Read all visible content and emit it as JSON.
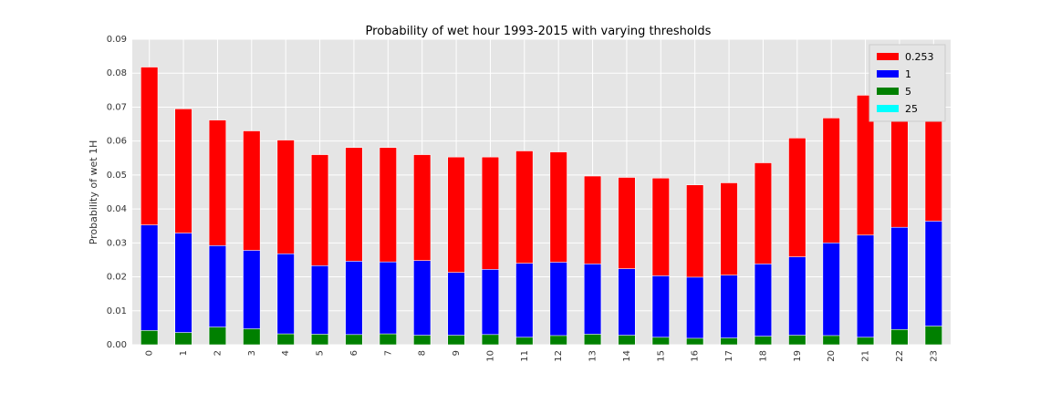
{
  "chart_data": {
    "type": "bar",
    "stacked": false,
    "overlay": true,
    "title": "Probability of wet hour 1993-2015 with varying thresholds",
    "xlabel": "",
    "ylabel": "Probability of wet 1H",
    "ylim": [
      0,
      0.09
    ],
    "yticks": [
      "0.00",
      "0.01",
      "0.02",
      "0.03",
      "0.04",
      "0.05",
      "0.06",
      "0.07",
      "0.08",
      "0.09"
    ],
    "grid": true,
    "legend_position": "top-right",
    "categories": [
      "0",
      "1",
      "2",
      "3",
      "4",
      "5",
      "6",
      "7",
      "8",
      "9",
      "10",
      "11",
      "12",
      "13",
      "14",
      "15",
      "16",
      "17",
      "18",
      "19",
      "20",
      "21",
      "22",
      "23"
    ],
    "series": [
      {
        "name": "0.253",
        "color": "#ff0000",
        "values": [
          0.0818,
          0.0695,
          0.0662,
          0.063,
          0.0603,
          0.056,
          0.0581,
          0.0581,
          0.056,
          0.0553,
          0.0553,
          0.0571,
          0.0568,
          0.0497,
          0.0493,
          0.0491,
          0.0471,
          0.0477,
          0.0536,
          0.0609,
          0.0668,
          0.0735,
          0.0668,
          0.0668
        ]
      },
      {
        "name": "1",
        "color": "#0000ff",
        "values": [
          0.0353,
          0.0329,
          0.0292,
          0.0278,
          0.0268,
          0.0233,
          0.0246,
          0.0244,
          0.0248,
          0.0213,
          0.0222,
          0.024,
          0.0243,
          0.0238,
          0.0224,
          0.0203,
          0.0199,
          0.0205,
          0.0238,
          0.0259,
          0.03,
          0.0323,
          0.0346,
          0.0364
        ]
      },
      {
        "name": "5",
        "color": "#008000",
        "values": [
          0.0042,
          0.0036,
          0.0052,
          0.0047,
          0.0032,
          0.0031,
          0.003,
          0.0032,
          0.0028,
          0.0028,
          0.003,
          0.0022,
          0.0027,
          0.0031,
          0.0028,
          0.0022,
          0.0019,
          0.002,
          0.0025,
          0.0028,
          0.0027,
          0.0022,
          0.0045,
          0.0055
        ]
      },
      {
        "name": "25",
        "color": "#00ffff",
        "values": [
          0,
          0,
          0,
          0,
          0,
          0,
          0,
          0,
          0,
          0,
          0,
          0,
          0,
          0,
          0,
          0,
          0,
          0,
          0,
          0,
          0,
          0,
          0,
          0
        ]
      }
    ]
  }
}
